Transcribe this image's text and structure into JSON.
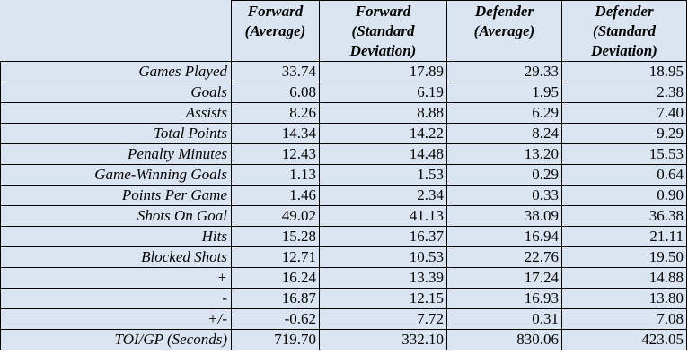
{
  "columns": [
    "Forward (Average)",
    "Forward (Standard Deviation)",
    "Defender (Average)",
    "Defender (Standard Deviation)"
  ],
  "rows": [
    {
      "label": "Games Played",
      "values": [
        "33.74",
        "17.89",
        "29.33",
        "18.95"
      ]
    },
    {
      "label": "Goals",
      "values": [
        "6.08",
        "6.19",
        "1.95",
        "2.38"
      ]
    },
    {
      "label": "Assists",
      "values": [
        "8.26",
        "8.88",
        "6.29",
        "7.40"
      ]
    },
    {
      "label": "Total Points",
      "values": [
        "14.34",
        "14.22",
        "8.24",
        "9.29"
      ]
    },
    {
      "label": "Penalty Minutes",
      "values": [
        "12.43",
        "14.48",
        "13.20",
        "15.53"
      ]
    },
    {
      "label": "Game-Winning Goals",
      "values": [
        "1.13",
        "1.53",
        "0.29",
        "0.64"
      ]
    },
    {
      "label": "Points Per Game",
      "values": [
        "1.46",
        "2.34",
        "0.33",
        "0.90"
      ]
    },
    {
      "label": "Shots On Goal",
      "values": [
        "49.02",
        "41.13",
        "38.09",
        "36.38"
      ]
    },
    {
      "label": "Hits",
      "values": [
        "15.28",
        "16.37",
        "16.94",
        "21.11"
      ]
    },
    {
      "label": "Blocked Shots",
      "values": [
        "12.71",
        "10.53",
        "22.76",
        "19.50"
      ]
    },
    {
      "label": "+",
      "values": [
        "16.24",
        "13.39",
        "17.24",
        "14.88"
      ]
    },
    {
      "label": "-",
      "values": [
        "16.87",
        "12.15",
        "16.93",
        "13.80"
      ]
    },
    {
      "label": "+/-",
      "values": [
        "-0.62",
        "7.72",
        "0.31",
        "7.08"
      ]
    },
    {
      "label": "TOI/GP (Seconds)",
      "values": [
        "719.70",
        "332.10",
        "830.06",
        "423.05"
      ]
    }
  ],
  "colors": {
    "table_background": "#dbe5f1",
    "grid_lines": "#000000"
  }
}
